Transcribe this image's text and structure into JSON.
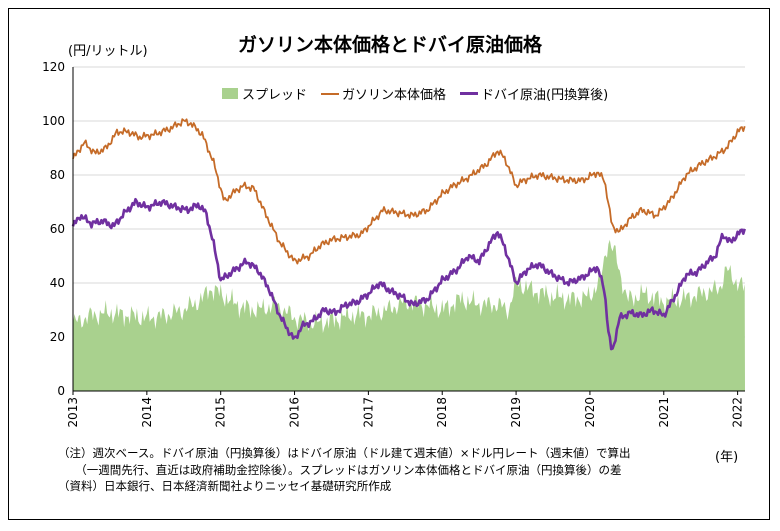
{
  "chart_data": {
    "type": "line",
    "title": "ガソリン本体価格とドバイ原油価格",
    "ylabel": "(円/リットル)",
    "xlabel": "(年)",
    "ylim": [
      0,
      120
    ],
    "yticks": [
      0,
      20,
      40,
      60,
      80,
      100,
      120
    ],
    "xlim": [
      2013.0,
      2022.1
    ],
    "xticks": [
      "2013",
      "2014",
      "2015",
      "2016",
      "2017",
      "2018",
      "2019",
      "2020",
      "2021",
      "2022"
    ],
    "grid": "horizontal",
    "legend_position": "top-center",
    "series": [
      {
        "name": "スプレッド",
        "kind": "area",
        "color": "#a9d18e",
        "x": [
          2013.0,
          2013.25,
          2013.5,
          2013.75,
          2014.0,
          2014.25,
          2014.5,
          2014.75,
          2014.85,
          2015.0,
          2015.15,
          2015.3,
          2015.5,
          2015.75,
          2016.0,
          2016.25,
          2016.5,
          2016.75,
          2017.0,
          2017.25,
          2017.5,
          2017.75,
          2018.0,
          2018.25,
          2018.5,
          2018.75,
          2018.9,
          2019.0,
          2019.25,
          2019.5,
          2019.75,
          2020.0,
          2020.15,
          2020.25,
          2020.35,
          2020.5,
          2020.75,
          2021.0,
          2021.25,
          2021.5,
          2021.75,
          2021.85,
          2022.0,
          2022.1
        ],
        "values": [
          25,
          28,
          29,
          28,
          27,
          28,
          30,
          34,
          38,
          36,
          33,
          31,
          30,
          32,
          27,
          25,
          26,
          28,
          28,
          30,
          33,
          32,
          30,
          34,
          32,
          32,
          30,
          40,
          37,
          35,
          34,
          35,
          42,
          56,
          50,
          34,
          36,
          33,
          34,
          36,
          38,
          45,
          40,
          38
        ]
      },
      {
        "name": "ガソリン本体価格",
        "kind": "line",
        "color": "#c56b28",
        "x": [
          2013.0,
          2013.15,
          2013.3,
          2013.45,
          2013.6,
          2013.75,
          2013.9,
          2014.1,
          2014.3,
          2014.5,
          2014.6,
          2014.75,
          2014.9,
          2015.05,
          2015.15,
          2015.3,
          2015.45,
          2015.6,
          2015.8,
          2016.0,
          2016.2,
          2016.35,
          2016.5,
          2016.7,
          2016.9,
          2017.0,
          2017.2,
          2017.4,
          2017.6,
          2017.8,
          2018.0,
          2018.15,
          2018.35,
          2018.6,
          2018.75,
          2018.85,
          2019.0,
          2019.1,
          2019.3,
          2019.5,
          2019.7,
          2019.9,
          2020.1,
          2020.2,
          2020.3,
          2020.4,
          2020.55,
          2020.7,
          2020.9,
          2021.1,
          2021.3,
          2021.5,
          2021.7,
          2021.85,
          2022.0,
          2022.1
        ],
        "values": [
          86,
          92,
          88,
          90,
          96,
          96,
          94,
          95,
          97,
          100,
          99,
          95,
          85,
          70,
          73,
          76,
          75,
          66,
          55,
          48,
          50,
          54,
          56,
          57,
          58,
          61,
          67,
          66,
          65,
          67,
          73,
          76,
          79,
          84,
          89,
          86,
          76,
          78,
          80,
          79,
          78,
          78,
          81,
          78,
          61,
          59,
          64,
          67,
          65,
          71,
          80,
          84,
          87,
          90,
          96,
          98
        ]
      },
      {
        "name": "ドバイ原油(円換算後)",
        "kind": "line",
        "color": "#7030a0",
        "x": [
          2013.0,
          2013.1,
          2013.25,
          2013.4,
          2013.55,
          2013.7,
          2013.85,
          2014.0,
          2014.2,
          2014.4,
          2014.55,
          2014.7,
          2014.8,
          2014.9,
          2015.0,
          2015.1,
          2015.2,
          2015.35,
          2015.5,
          2015.65,
          2015.8,
          2015.9,
          2016.0,
          2016.1,
          2016.25,
          2016.4,
          2016.55,
          2016.7,
          2016.85,
          2017.0,
          2017.15,
          2017.3,
          2017.45,
          2017.6,
          2017.8,
          2018.0,
          2018.2,
          2018.35,
          2018.5,
          2018.65,
          2018.75,
          2018.85,
          2019.0,
          2019.15,
          2019.3,
          2019.5,
          2019.7,
          2019.9,
          2020.0,
          2020.1,
          2020.2,
          2020.25,
          2020.3,
          2020.4,
          2020.55,
          2020.7,
          2020.85,
          2021.0,
          2021.15,
          2021.3,
          2021.45,
          2021.6,
          2021.7,
          2021.8,
          2021.9,
          2022.0,
          2022.1
        ],
        "values": [
          61,
          65,
          62,
          63,
          61,
          66,
          70,
          68,
          70,
          68,
          67,
          69,
          66,
          55,
          41,
          43,
          45,
          48,
          45,
          38,
          28,
          23,
          19,
          24,
          26,
          30,
          29,
          32,
          33,
          36,
          40,
          37,
          35,
          32,
          34,
          41,
          45,
          50,
          48,
          55,
          59,
          53,
          40,
          45,
          47,
          43,
          40,
          42,
          44,
          46,
          37,
          22,
          14,
          27,
          29,
          28,
          30,
          28,
          35,
          43,
          44,
          48,
          50,
          58,
          55,
          58,
          60
        ]
      }
    ]
  },
  "notes": {
    "line1": "（注）週次ベース。ドバイ原油（円換算後）はドバイ原油（ドル建て週末値）×ドル円レート（週末値）で算出",
    "line2": "　　（一週間先行、直近は政府補助金控除後）。スプレッドはガソリン本体価格とドバイ原油（円換算後）の差",
    "line3": "（資料）日本銀行、日本経済新聞社よりニッセイ基礎研究所作成"
  }
}
